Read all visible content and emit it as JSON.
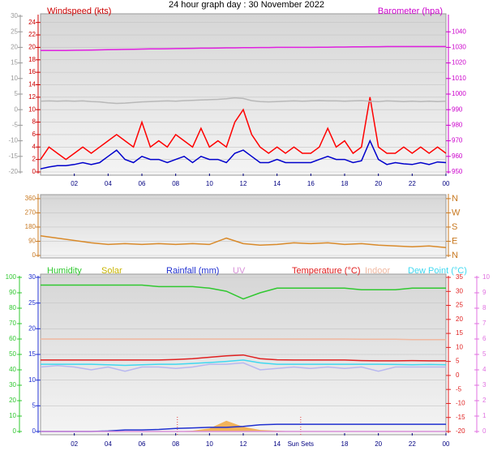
{
  "chart_data": [
    {
      "type": "line",
      "title": "24 hour graph day : 30 November 2022",
      "ylabel": "Windspeed (kts)",
      "y2label": "Barometer (hpa)",
      "grid": true,
      "x": [
        0,
        0.5,
        1,
        1.5,
        2,
        2.5,
        3,
        3.5,
        4,
        4.5,
        5,
        5.5,
        6,
        6.5,
        7,
        7.5,
        8,
        8.5,
        9,
        9.5,
        10,
        10.5,
        11,
        11.5,
        12,
        12.5,
        13,
        13.5,
        14,
        14.5,
        15,
        15.5,
        16,
        16.5,
        17,
        17.5,
        18,
        18.5,
        19,
        19.5,
        20,
        20.5,
        21,
        21.5,
        22,
        22.5,
        23,
        23.5,
        24
      ],
      "xlim": [
        0,
        24
      ],
      "xticks": [
        {
          "value": 2,
          "label": "02"
        },
        {
          "value": 4,
          "label": "04"
        },
        {
          "value": 6,
          "label": "06"
        },
        {
          "value": 8,
          "label": "08"
        },
        10,
        12,
        14,
        16,
        18,
        20,
        22,
        {
          "value": 24,
          "label": "00"
        }
      ],
      "ylim": [
        0,
        25
      ],
      "yticks": [
        0,
        2,
        4,
        6,
        8,
        10,
        12,
        14,
        16,
        18,
        20,
        22,
        24
      ],
      "y2lim": [
        950,
        1050
      ],
      "y2ticks": [
        950,
        960,
        970,
        980,
        990,
        1000,
        1010,
        1020,
        1030,
        1040
      ],
      "y3lim": [
        -20,
        30
      ],
      "y3ticks": [
        -20,
        -15,
        -10,
        -5,
        0,
        5,
        10,
        15,
        20,
        25,
        30
      ],
      "series": [
        {
          "color": "#ff0000",
          "values": [
            2,
            4,
            3,
            2,
            3,
            4,
            3,
            4,
            5,
            6,
            5,
            4,
            8,
            4,
            5,
            4,
            6,
            5,
            4,
            7,
            4,
            5,
            4,
            8,
            10,
            6,
            4,
            3,
            4,
            3,
            4,
            3,
            3,
            4,
            7,
            4,
            5,
            3,
            4,
            12,
            4,
            3,
            3,
            4,
            3,
            4,
            3,
            4,
            3
          ]
        },
        {
          "color": "#0000cc",
          "values": [
            0.5,
            0.8,
            1,
            1,
            1.2,
            1.5,
            1.2,
            1.5,
            2.5,
            3.5,
            2,
            1.5,
            2.5,
            2,
            2,
            1.5,
            2,
            2.5,
            1.5,
            2.5,
            2,
            2,
            1.5,
            3,
            3.5,
            2.5,
            1.5,
            1.5,
            2,
            1.5,
            1.5,
            1.5,
            1.5,
            2,
            2.5,
            2,
            2,
            1.5,
            1.8,
            5,
            2,
            1.2,
            1.5,
            1.3,
            1.2,
            1.5,
            1.2,
            1.6,
            1.5
          ]
        },
        {
          "color": "#e020e0",
          "axis": "y2",
          "values": [
            1028,
            1028,
            1028,
            1028,
            1028.1,
            1028.2,
            1028.3,
            1028.4,
            1028.5,
            1028.6,
            1028.7,
            1028.8,
            1028.9,
            1029,
            1029,
            1029.1,
            1029.2,
            1029.3,
            1029.4,
            1029.5,
            1029.5,
            1029.6,
            1029.7,
            1029.7,
            1029.8,
            1029.8,
            1029.9,
            1029.9,
            1030,
            1030,
            1030,
            1030,
            1030,
            1030.1,
            1030.1,
            1030.2,
            1030.2,
            1030.3,
            1030.3,
            1030.4,
            1030.4,
            1030.5,
            1030.5,
            1030.5,
            1030.5,
            1030.5,
            1030.5,
            1030.5,
            1030.5
          ]
        },
        {
          "color": "#b8b8b8",
          "axis": "y3",
          "values": [
            2.7,
            2.8,
            2.7,
            2.8,
            2.7,
            2.8,
            2.6,
            2.5,
            2.2,
            2,
            2.1,
            2.3,
            2.5,
            2.6,
            2.7,
            2.8,
            2.7,
            2.9,
            3,
            3.1,
            3.2,
            3.3,
            3.5,
            3.8,
            3.6,
            2.9,
            2.6,
            2.5,
            2.6,
            2.7,
            2.8,
            2.7,
            2.8,
            2.9,
            2.8,
            2.8,
            2.7,
            2.8,
            2.9,
            2.7,
            2.6,
            2.8,
            2.7,
            2.6,
            2.7,
            2.6,
            2.7,
            2.6,
            2.7
          ]
        }
      ]
    },
    {
      "type": "line",
      "grid": true,
      "x": [
        0,
        1,
        2,
        3,
        4,
        5,
        6,
        7,
        8,
        9,
        10,
        11,
        12,
        13,
        14,
        15,
        16,
        17,
        18,
        19,
        20,
        21,
        22,
        23,
        24
      ],
      "xlim": [
        0,
        24
      ],
      "ylim": [
        0,
        380
      ],
      "yticks": [
        0,
        90,
        180,
        270,
        360
      ],
      "y2lim": [
        0,
        380
      ],
      "y2ticks": [
        {
          "value": 0,
          "label": "N"
        },
        {
          "value": 90,
          "label": "E"
        },
        {
          "value": 180,
          "label": "S"
        },
        {
          "value": 270,
          "label": "W"
        },
        {
          "value": 360,
          "label": "N"
        }
      ],
      "series": [
        {
          "color": "#d98a2a",
          "values": [
            125,
            110,
            95,
            80,
            70,
            75,
            70,
            75,
            70,
            75,
            70,
            110,
            75,
            65,
            70,
            80,
            75,
            80,
            70,
            75,
            65,
            60,
            55,
            60,
            50
          ]
        }
      ]
    },
    {
      "type": "line",
      "grid": true,
      "x": [
        0,
        1,
        2,
        3,
        4,
        5,
        6,
        7,
        8,
        9,
        10,
        11,
        12,
        13,
        14,
        15,
        16,
        17,
        18,
        19,
        20,
        21,
        22,
        23,
        24
      ],
      "xlim": [
        0,
        24
      ],
      "xticks": [
        {
          "value": 2,
          "label": "02"
        },
        {
          "value": 4,
          "label": "04"
        },
        {
          "value": 6,
          "label": "06"
        },
        {
          "value": 8,
          "label": "08"
        },
        10,
        12,
        14,
        18,
        20,
        22,
        {
          "value": 24,
          "label": "00"
        }
      ],
      "ylim": [
        0,
        30
      ],
      "yticks": [
        0,
        5,
        10,
        15,
        20,
        25,
        30
      ],
      "y2lim": [
        -20,
        35
      ],
      "y2ticks": [
        -20,
        -15,
        -10,
        -5,
        0,
        5,
        10,
        15,
        20,
        25,
        30,
        35
      ],
      "y3lim": [
        0,
        100
      ],
      "y3ticks": [
        0,
        10,
        20,
        30,
        40,
        50,
        60,
        70,
        80,
        90,
        100
      ],
      "y4lim": [
        0,
        10
      ],
      "y4ticks": [
        0,
        1,
        2,
        3,
        4,
        5,
        6,
        7,
        8,
        9,
        10
      ],
      "annotations": [
        {
          "text": "Sun Sets",
          "x": 15.4
        }
      ],
      "sun_events": [
        8.1,
        15.4
      ],
      "series": [
        {
          "name": "Humidity",
          "color": "#30c830",
          "axis": "y3",
          "values": [
            95,
            95,
            95,
            95,
            95,
            95,
            95,
            94,
            94,
            94,
            93,
            91,
            86,
            90,
            93,
            93,
            93,
            93,
            93,
            92,
            92,
            92,
            93,
            93,
            93
          ]
        },
        {
          "name": "Solar",
          "color": "#f2b35a",
          "axis": "y3",
          "kind": "area",
          "values": [
            0,
            0,
            0,
            0,
            0,
            0,
            0,
            0,
            0,
            0.5,
            2,
            7,
            3,
            1,
            0.5,
            0,
            0,
            0,
            0,
            0,
            0,
            0,
            0,
            0,
            0
          ]
        },
        {
          "name": "Rainfall (mm)",
          "color": "#2030d0",
          "values": [
            0,
            0,
            0,
            0,
            0.1,
            0.3,
            0.3,
            0.4,
            0.6,
            0.7,
            0.8,
            0.8,
            1,
            1.3,
            1.4,
            1.4,
            1.4,
            1.4,
            1.4,
            1.4,
            1.4,
            1.4,
            1.4,
            1.4,
            1.4
          ]
        },
        {
          "name": "UV",
          "color": "#d890d8",
          "axis": "y4",
          "values": [
            0,
            0,
            0,
            0,
            0,
            0,
            0,
            0,
            0,
            0,
            0,
            0,
            0,
            0,
            0,
            0,
            0,
            0,
            0,
            0,
            0,
            0,
            0,
            0,
            0
          ]
        },
        {
          "name": "Temperature (°C)",
          "color": "#e02020",
          "axis": "y2",
          "values": [
            5.5,
            5.5,
            5.5,
            5.5,
            5.5,
            5.5,
            5.5,
            5.5,
            5.7,
            6,
            6.5,
            7,
            7.3,
            6,
            5.6,
            5.5,
            5.5,
            5.5,
            5.5,
            5.3,
            5.2,
            5.2,
            5.3,
            5.2,
            5.2
          ]
        },
        {
          "name": "Indoor",
          "color": "#f0b8a0",
          "axis": "y2",
          "values": [
            13,
            13,
            13,
            13,
            13,
            13,
            13,
            13,
            13,
            13,
            13,
            13,
            13,
            13,
            13,
            13,
            13,
            13,
            13,
            12.9,
            12.9,
            12.9,
            12.8,
            12.8,
            12.8
          ]
        },
        {
          "name": "Dew Point (°C)",
          "color": "#40d8f0",
          "axis": "y2",
          "values": [
            4,
            4,
            4,
            4,
            3.8,
            3.6,
            3.8,
            4,
            4,
            4.3,
            4.6,
            5,
            5.5,
            4.5,
            4,
            4,
            4,
            4,
            4,
            4,
            4,
            3.9,
            3.8,
            3.9,
            3.8
          ]
        },
        {
          "color": "#b8b8f0",
          "axis": "y2",
          "values": [
            3,
            3.5,
            3,
            2,
            3,
            1.5,
            3,
            3,
            2.5,
            3,
            4,
            4,
            4.5,
            2,
            2.5,
            3,
            2.5,
            3,
            2.5,
            3,
            1.5,
            3,
            3,
            3,
            3
          ]
        }
      ]
    }
  ]
}
